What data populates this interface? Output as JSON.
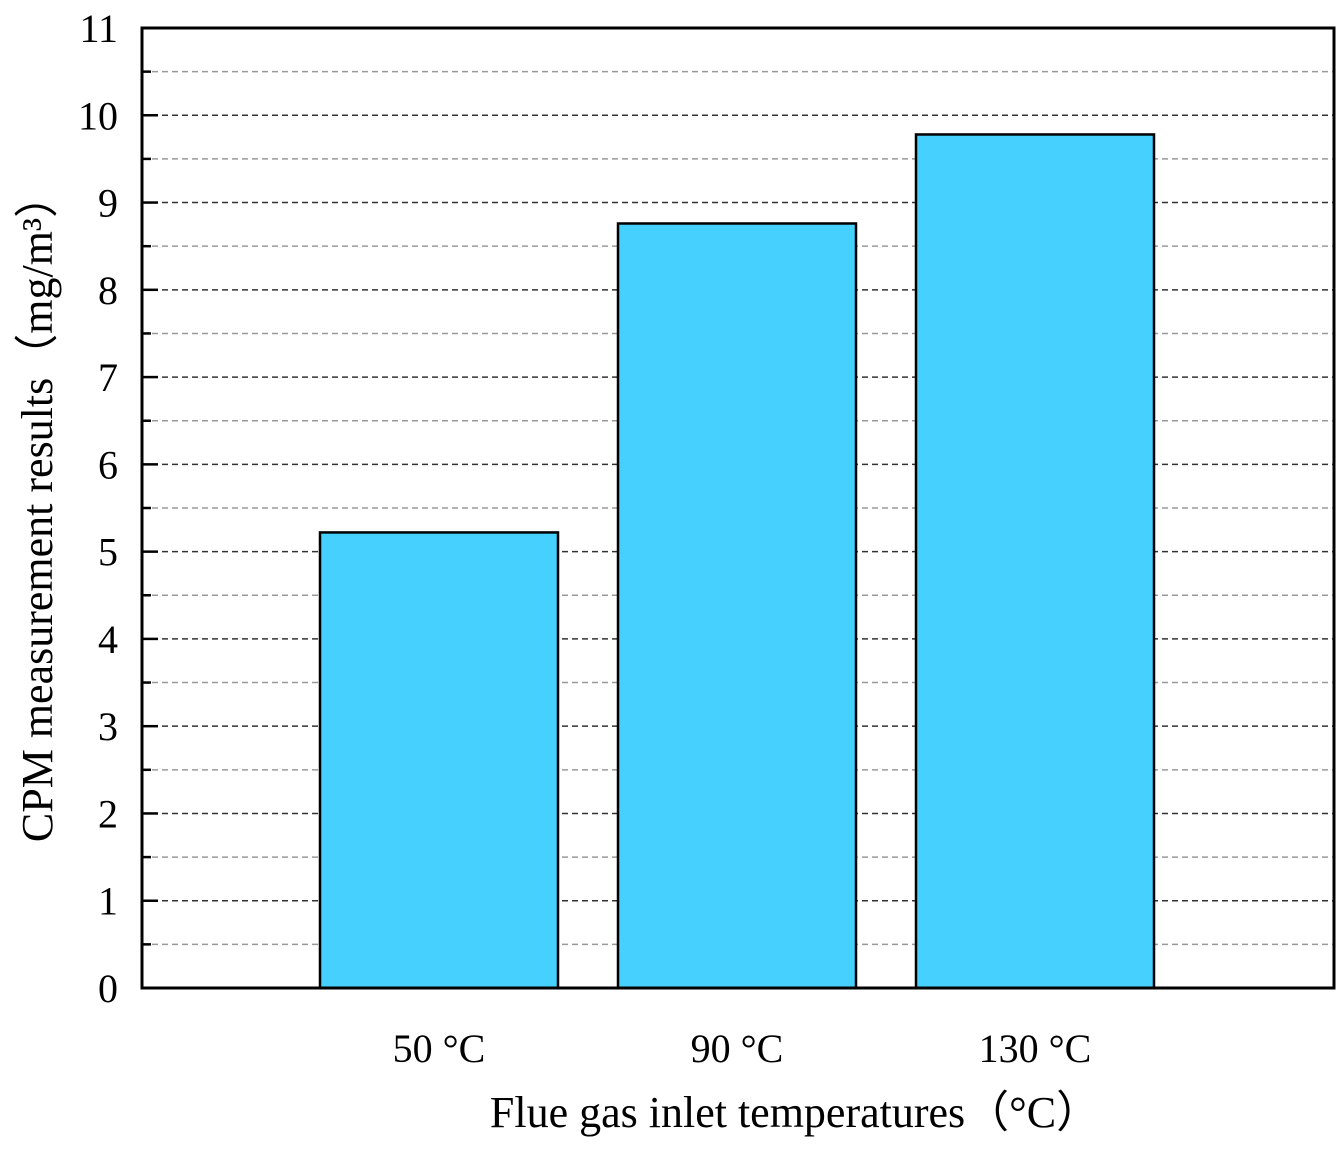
{
  "chart_data": {
    "type": "bar",
    "title": "",
    "xlabel": "Flue gas inlet temperatures（°C）",
    "ylabel": "CPM measurement results（mg/m³）",
    "categories": [
      "50 °C",
      "90 °C",
      "130 °C"
    ],
    "values": [
      5.22,
      8.76,
      9.78
    ],
    "ylim": [
      0,
      11
    ],
    "yticks": [
      "0",
      "1",
      "2",
      "3",
      "4",
      "5",
      "6",
      "7",
      "8",
      "9",
      "10",
      "11"
    ],
    "grid": "dashed horizontal at major and minor ticks",
    "legend": "none",
    "colors": {
      "bar_fill": "#46d0fe",
      "bar_stroke": "#000000",
      "grid": "#555555"
    }
  }
}
